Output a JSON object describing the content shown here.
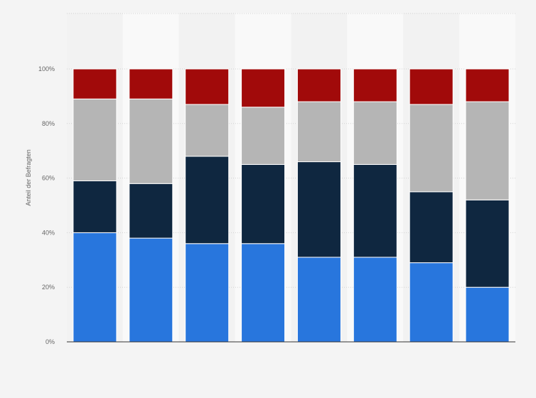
{
  "chart_data": {
    "type": "bar",
    "stacked": true,
    "orientation": "vertical",
    "title": "",
    "xlabel": "",
    "ylabel": "Anteil der Befragten",
    "ylim": [
      0,
      100
    ],
    "y_ticks": [
      0,
      20,
      40,
      60,
      80,
      100
    ],
    "y_tick_labels": [
      "0%",
      "20%",
      "40%",
      "60%",
      "80%",
      "100%"
    ],
    "grid": true,
    "legend": "none",
    "categories": [
      "",
      "",
      "",
      "",
      "",
      "",
      "",
      ""
    ],
    "series": [
      {
        "color": "#2876dd",
        "values": [
          40,
          38,
          36,
          36,
          31,
          31,
          29,
          20
        ]
      },
      {
        "color": "#0f2740",
        "values": [
          19,
          20,
          32,
          29,
          35,
          34,
          26,
          32
        ]
      },
      {
        "color": "#b5b5b5",
        "values": [
          30,
          31,
          19,
          21,
          22,
          23,
          32,
          36
        ]
      },
      {
        "color": "#a10a0a",
        "values": [
          11,
          11,
          13,
          14,
          12,
          12,
          13,
          12
        ]
      }
    ]
  }
}
